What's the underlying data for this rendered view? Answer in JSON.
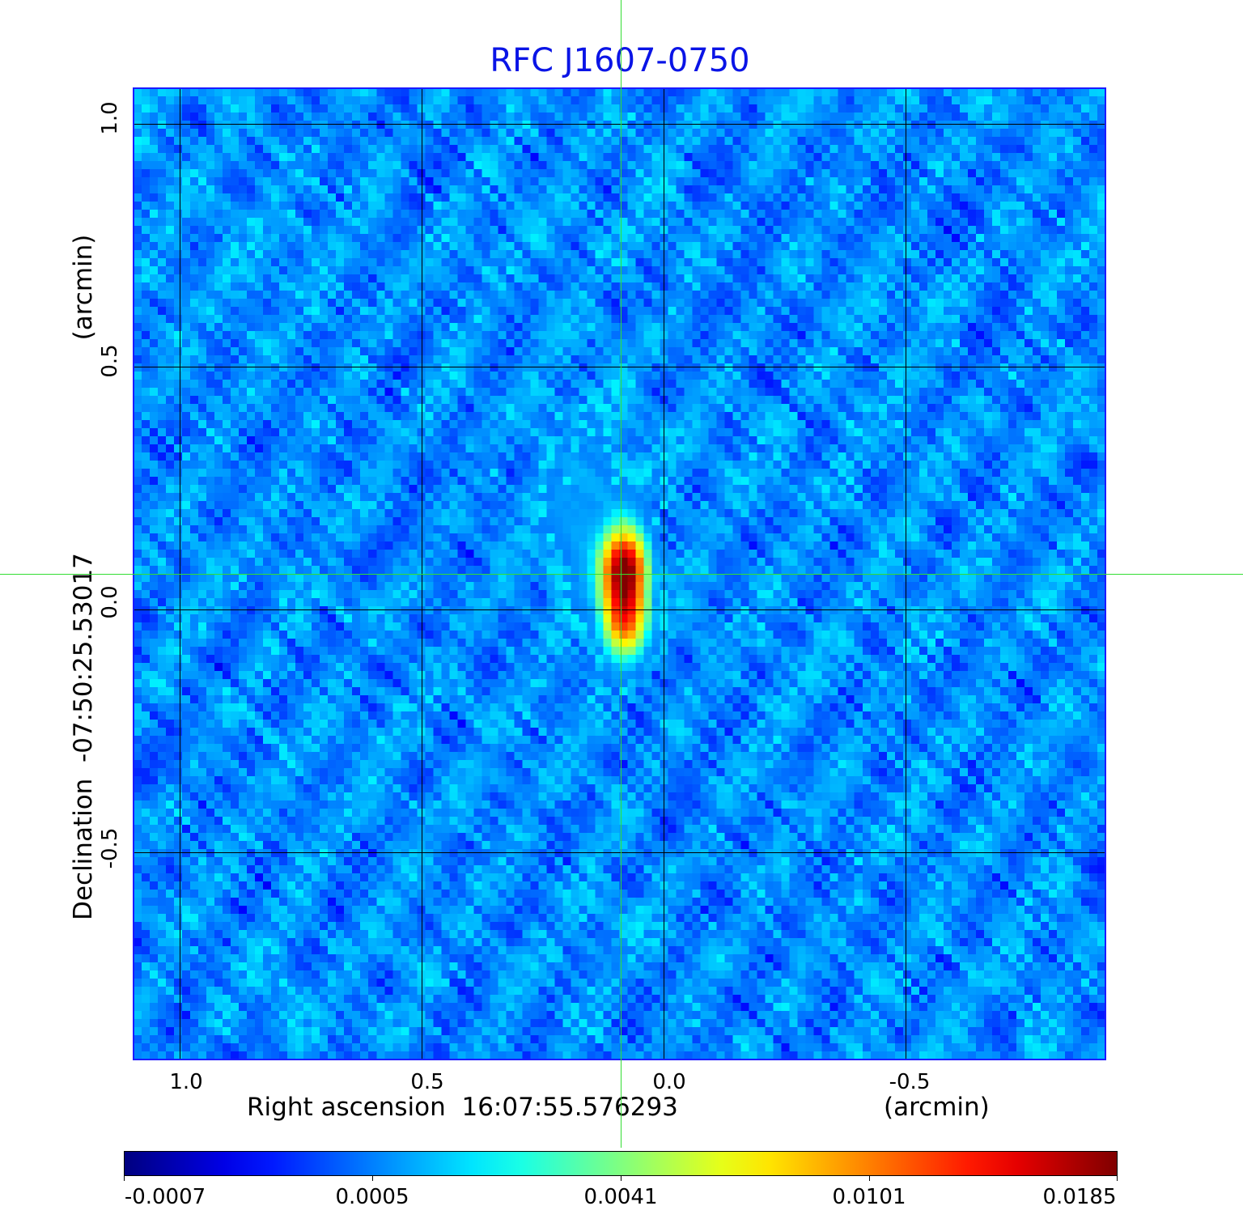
{
  "chart_data": {
    "type": "heatmap",
    "title": "RFC J1607-0750",
    "xlabel": "Right ascension  16:07:55.576293",
    "xunit": "(arcmin)",
    "ylabel": "Declination  -07:50:25.53017",
    "yunit": "(arcmin)",
    "xlim": [
      1.1,
      -0.9
    ],
    "ylim": [
      -0.93,
      1.07
    ],
    "xticks": [
      "1.0",
      "0.5",
      "0.0",
      "-0.5"
    ],
    "yticks": [
      "1.0",
      "0.5",
      "0.0",
      "-0.5"
    ],
    "xtick_values": [
      1.0,
      0.5,
      0.0,
      -0.5
    ],
    "ytick_values": [
      1.0,
      0.5,
      0.0,
      -0.5
    ],
    "grid": true,
    "crosshair": {
      "ra_offset_arcmin": 0.09,
      "dec_offset_arcmin": 0.073
    },
    "source": {
      "components": [
        {
          "ra_offset_arcmin": 0.09,
          "dec_offset_arcmin": 0.08,
          "peak": 0.0185
        },
        {
          "ra_offset_arcmin": 0.09,
          "dec_offset_arcmin": -0.02,
          "peak": 0.012
        },
        {
          "ra_offset_arcmin": 0.16,
          "dec_offset_arcmin": 0.2,
          "peak": 0.0012
        }
      ],
      "background_rms": 0.0003
    },
    "colorbar": {
      "colormap": "jet",
      "ticks": [
        "-0.0007",
        "0.0005",
        "0.0041",
        "0.0101",
        "0.0185"
      ],
      "tick_values": [
        -0.0007,
        0.0005,
        0.0041,
        0.0101,
        0.0185
      ]
    }
  },
  "colors": {
    "title": "#0a14e6",
    "frame": "#1a1aff",
    "crosshair": "#33dd33",
    "grid": "#000000"
  }
}
